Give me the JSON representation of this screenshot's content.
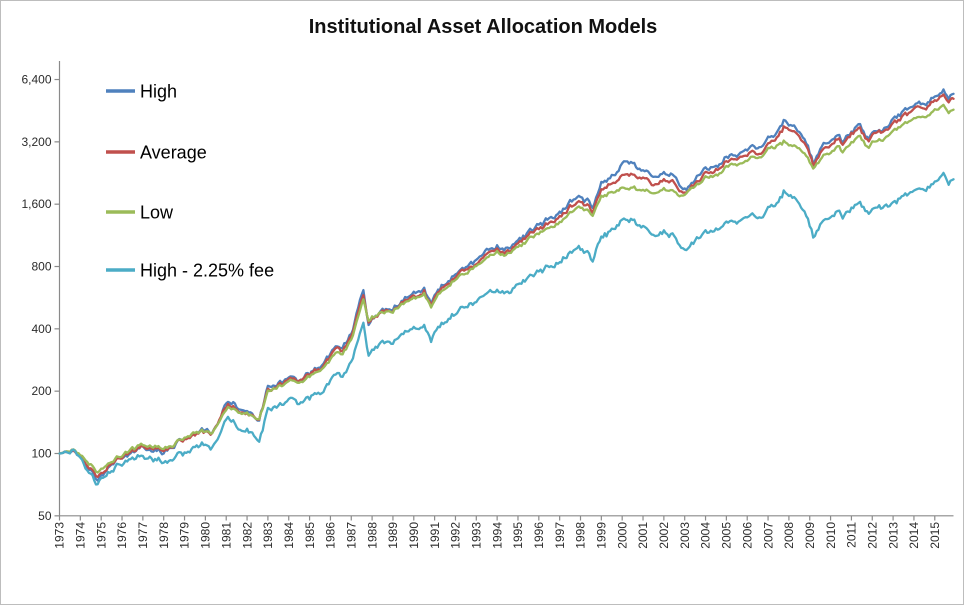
{
  "title": "Institutional Asset Allocation Models",
  "colors": {
    "high": "#4F81BD",
    "average": "#C0504D",
    "low": "#9BBB59",
    "high_fee": "#4BACC6",
    "axis": "#8a8a8a",
    "tick_text": "#2b2b2b",
    "title_text": "#111111",
    "background": "#ffffff",
    "frame_border": "#bdbdbd"
  },
  "chart_data": {
    "type": "line",
    "title": "Institutional Asset Allocation Models",
    "xlabel": "",
    "ylabel": "",
    "grid": false,
    "legend_position": "top-left",
    "y_axis": {
      "scale": "log2",
      "range": [
        50,
        6400
      ],
      "ticks": [
        6400,
        3200,
        1600,
        800,
        400,
        200,
        100,
        50
      ],
      "tick_labels": [
        "6,400",
        "3,200",
        "1,600",
        "800",
        "400",
        "200",
        "100",
        "50"
      ]
    },
    "x_axis": {
      "range": [
        1973,
        2015.9
      ],
      "tick_labels": [
        "1973",
        "1974",
        "1975",
        "1976",
        "1977",
        "1978",
        "1979",
        "1980",
        "1981",
        "1982",
        "1983",
        "1984",
        "1985",
        "1986",
        "1987",
        "1988",
        "1989",
        "1990",
        "1991",
        "1992",
        "1993",
        "1994",
        "1995",
        "1996",
        "1997",
        "1998",
        "1999",
        "2000",
        "2001",
        "2002",
        "2003",
        "2004",
        "2005",
        "2006",
        "2007",
        "2008",
        "2009",
        "2010",
        "2011",
        "2012",
        "2013",
        "2014",
        "2015"
      ],
      "label_rotation_deg": -90
    },
    "x": [
      1973.0,
      1973.6,
      1974.0,
      1974.5,
      1974.8,
      1975.0,
      1975.5,
      1976.0,
      1976.5,
      1977.0,
      1977.5,
      1978.2,
      1978.7,
      1979.0,
      1979.8,
      1980.3,
      1980.7,
      1981.1,
      1981.6,
      1982.0,
      1982.4,
      1982.6,
      1983.0,
      1983.6,
      1984.0,
      1984.5,
      1985.0,
      1985.5,
      1986.0,
      1986.3,
      1986.6,
      1987.0,
      1987.6,
      1987.8,
      1988.0,
      1988.5,
      1989.0,
      1989.5,
      1990.0,
      1990.5,
      1990.8,
      1991.0,
      1991.2,
      1992.0,
      1993.0,
      1994.0,
      1994.4,
      1995.0,
      1996.0,
      1997.0,
      1997.7,
      1998.0,
      1998.6,
      1999.0,
      1999.4,
      2000.2,
      2000.6,
      2001.0,
      2001.7,
      2002.0,
      2002.4,
      2002.7,
      2003.1,
      2003.8,
      2004.0,
      2004.6,
      2005.0,
      2006.0,
      2006.4,
      2006.6,
      2007.0,
      2007.4,
      2007.8,
      2008.0,
      2008.5,
      2008.75,
      2009.2,
      2009.6,
      2010.0,
      2010.4,
      2010.6,
      2011.0,
      2011.4,
      2011.8,
      2012.0,
      2012.5,
      2013.0,
      2013.5,
      2014.0,
      2014.6,
      2015.0,
      2015.4,
      2015.65,
      2015.9
    ],
    "series": [
      {
        "name": "High",
        "color": "#4F81BD",
        "values": [
          100,
          103,
          94,
          83,
          71,
          79,
          90,
          96,
          102,
          106,
          104,
          103,
          112,
          117,
          128,
          124,
          144,
          180,
          166,
          160,
          146,
          148,
          205,
          222,
          235,
          222,
          242,
          265,
          304,
          330,
          320,
          380,
          610,
          420,
          450,
          475,
          505,
          560,
          590,
          640,
          525,
          560,
          620,
          745,
          850,
          1020,
          965,
          1060,
          1270,
          1450,
          1680,
          1740,
          1560,
          1990,
          2150,
          2620,
          2450,
          2320,
          2080,
          2270,
          2230,
          1980,
          1900,
          2300,
          2450,
          2420,
          2700,
          2920,
          3000,
          2920,
          3320,
          3550,
          4090,
          3900,
          3620,
          3300,
          2520,
          3050,
          3200,
          3420,
          3180,
          3550,
          3780,
          3380,
          3640,
          3680,
          4050,
          4350,
          4750,
          4900,
          5250,
          5700,
          5100,
          5400
        ]
      },
      {
        "name": "Average",
        "color": "#C0504D",
        "values": [
          100,
          103,
          95,
          85,
          75,
          81,
          91,
          97,
          103,
          107,
          106,
          105,
          113,
          118,
          128,
          124,
          143,
          174,
          163,
          158,
          146,
          148,
          202,
          218,
          230,
          219,
          238,
          260,
          296,
          320,
          311,
          368,
          585,
          428,
          455,
          472,
          498,
          548,
          575,
          620,
          518,
          550,
          605,
          722,
          825,
          985,
          935,
          1022,
          1215,
          1380,
          1585,
          1640,
          1490,
          1860,
          1985,
          2280,
          2170,
          2100,
          1920,
          2080,
          2050,
          1860,
          1860,
          2190,
          2330,
          2300,
          2570,
          2780,
          2850,
          2780,
          3150,
          3330,
          3800,
          3650,
          3400,
          3120,
          2480,
          2940,
          3090,
          3300,
          3070,
          3430,
          3650,
          3260,
          3510,
          3550,
          3900,
          4180,
          4560,
          4700,
          5050,
          5350,
          4950,
          5200
        ]
      },
      {
        "name": "Low",
        "color": "#9BBB59",
        "values": [
          100,
          104,
          96,
          88,
          79,
          84,
          93,
          99,
          105,
          109,
          108,
          107,
          114,
          119,
          128,
          125,
          141,
          168,
          160,
          156,
          146,
          149,
          200,
          214,
          226,
          216,
          234,
          254,
          288,
          310,
          302,
          355,
          555,
          440,
          460,
          470,
          490,
          535,
          560,
          600,
          510,
          540,
          590,
          700,
          800,
          950,
          905,
          985,
          1160,
          1310,
          1490,
          1545,
          1420,
          1730,
          1820,
          1950,
          1900,
          1870,
          1760,
          1890,
          1870,
          1740,
          1830,
          2080,
          2200,
          2190,
          2420,
          2600,
          2680,
          2620,
          2940,
          3060,
          3220,
          3080,
          2950,
          2780,
          2370,
          2700,
          2830,
          3030,
          2820,
          3140,
          3350,
          2990,
          3220,
          3260,
          3600,
          3800,
          4120,
          4230,
          4480,
          4750,
          4380,
          4550
        ]
      },
      {
        "name": "High - 2.25% fee",
        "color": "#4BACC6",
        "values": [
          100,
          102,
          92,
          80,
          68,
          75,
          85,
          90,
          94,
          97,
          94,
          91,
          98,
          102,
          110,
          105,
          121,
          150,
          136,
          130,
          118,
          119,
          163,
          174,
          183,
          171,
          184,
          200,
          226,
          244,
          235,
          276,
          420,
          300,
          320,
          334,
          351,
          385,
          401,
          430,
          350,
          372,
          410,
          483,
          539,
          632,
          593,
          642,
          752,
          840,
          958,
          985,
          870,
          1100,
          1178,
          1410,
          1306,
          1225,
          1082,
          1171,
          1142,
          1020,
          980,
          1141,
          1210,
          1179,
          1304,
          1378,
          1404,
          1361,
          1531,
          1622,
          1853,
          1759,
          1615,
          1462,
          1104,
          1320,
          1380,
          1470,
          1360,
          1510,
          1600,
          1430,
          1540,
          1545,
          1620,
          1727,
          1862,
          1896,
          2011,
          2250,
          2000,
          2120
        ]
      }
    ]
  }
}
